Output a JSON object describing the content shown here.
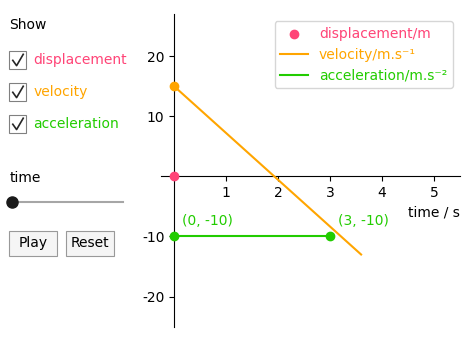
{
  "chart_data": {
    "type": "line",
    "xlabel": "time / s",
    "xlim": [
      -0.25,
      5.5
    ],
    "ylim": [
      -25,
      27
    ],
    "xticks": [
      1,
      2,
      3,
      4,
      5
    ],
    "yticks": [
      -20,
      -10,
      10,
      20
    ],
    "legend": "upper right",
    "series": [
      {
        "name": "displacement/m",
        "type": "scatter",
        "color": "#ff4477",
        "x": [
          0
        ],
        "values": [
          0
        ]
      },
      {
        "name": "velocity/m.s⁻¹",
        "type": "line",
        "color": "#ffa500",
        "x": [
          0,
          3.6
        ],
        "values": [
          15,
          -13
        ],
        "dots": {
          "x": [
            0
          ],
          "values": [
            15
          ]
        }
      },
      {
        "name": "acceleration/m.s⁻²",
        "type": "line",
        "color": "#22cc00",
        "x": [
          0,
          3
        ],
        "values": [
          -10,
          -10
        ],
        "dots": {
          "x": [
            0,
            3
          ],
          "values": [
            -10,
            -10
          ]
        }
      }
    ],
    "annotations": [
      {
        "text": "(0, -10)",
        "x": 0,
        "y": -10,
        "color": "#22cc00"
      },
      {
        "text": "(3, -10)",
        "x": 3,
        "y": -10,
        "color": "#22cc00"
      }
    ],
    "controls": {
      "title": "Show",
      "checkboxes": [
        {
          "text": "displacement",
          "color": "#ff4477"
        },
        {
          "text": "velocity",
          "color": "#ffa500"
        },
        {
          "text": "acceleration",
          "color": "#22cc00"
        }
      ],
      "slider_label": "time",
      "buttons": [
        "Play",
        "Reset"
      ]
    }
  }
}
